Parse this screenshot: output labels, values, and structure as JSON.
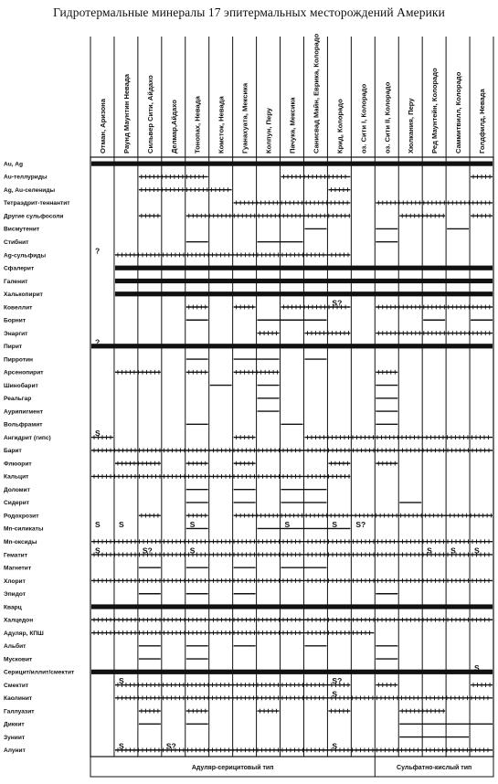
{
  "title": "Гидротермальные минералы 17 эпитермальных месторождений Америки",
  "chart_data": {
    "type": "table",
    "title": "Гидротермальные минералы 17 эпитермальных месторождений Америки",
    "deposits": [
      "Отман, Аризона",
      "Раунд Маунтин Невада",
      "Сильвер Сити, Айдахо",
      "Делмар,Айдахо",
      "Тонопах, Невада",
      "Комсток, Невада",
      "Гуанахуата, Мексика",
      "Колпун, Перу",
      "Пачука, Мексика",
      "Санисвад Майн, Еврика, Колорадо",
      "Крид, Колорадо",
      "оз. Сити I, Колорадо",
      "оз. Сити II, Колорадо",
      "Хюлкания, Перу",
      "Ред Маунтейн, Колорадо",
      "Саммитвилл, Колорадо",
      "Голдфилд, Невада"
    ],
    "minerals": [
      "Au, Ag",
      "Au-теллуриды",
      "Ag, Au-селениды",
      "Тетраэдрит-теннантит",
      "Другие сульфосоли",
      "Висмутенит",
      "Стибнит",
      "Ag-сульфиды",
      "Сфалерит",
      "Галенит",
      "Халькопирит",
      "Ковеллит",
      "Борнит",
      "Энаргит",
      "Пирит",
      "Пирротин",
      "Арсенопирит",
      "Шинобарит",
      "Реальгар",
      "Аурипигмент",
      "Вольфрамит",
      "Ангидрит (гипс)",
      "Барит",
      "Флюорит",
      "Кальцит",
      "Доломит",
      "Сидерит",
      "Родохрозит",
      "Мn-силикаты",
      "Мn-оксиды",
      "Гематит",
      "Магнетит",
      "Хлорит",
      "Эпидот",
      "Кварц",
      "Халцедон",
      "Адуляр, КПШ",
      "Альбит",
      "Мусковит",
      "Серицит/иллит/смектит",
      "Смектит",
      "Каолинит",
      "Галлуазит",
      "Диккит",
      "Зуниит",
      "Алунит"
    ],
    "legend_marks": [
      "?",
      "S",
      "S?"
    ],
    "footer_groups": [
      {
        "label": "Адуляр-серицитовый тип"
      },
      {
        "label": "Сульфатно-кислый тип"
      }
    ],
    "occurrences": [
      {
        "mineral": "Au, Ag",
        "style": "thick",
        "deposits": [
          1,
          2,
          3,
          4,
          5,
          6,
          7,
          8,
          9,
          10,
          11,
          12,
          13,
          14,
          15,
          16,
          17
        ]
      },
      {
        "mineral": "Au-теллуриды",
        "style": "tick",
        "deposits": [
          3,
          4,
          5,
          9,
          10,
          11,
          17
        ]
      },
      {
        "mineral": "Ag, Au-селениды",
        "style": "tick",
        "deposits": [
          3,
          4,
          5,
          6,
          11
        ]
      },
      {
        "mineral": "Тетраэдрит-теннантит",
        "style": "tick",
        "deposits": [
          7,
          8,
          9,
          10,
          11,
          13,
          14,
          15,
          16,
          17
        ]
      },
      {
        "mineral": "Другие сульфосоли",
        "style": "tick",
        "deposits": [
          3,
          5,
          6,
          7,
          8,
          9,
          10,
          11,
          14,
          15,
          17
        ]
      },
      {
        "mineral": "Висмутенит",
        "style": "thin",
        "deposits": [
          10,
          13,
          16
        ]
      },
      {
        "mineral": "Стибнит",
        "style": "thin",
        "deposits": [
          5,
          8,
          9,
          13
        ]
      },
      {
        "mineral": "Ag-сульфиды",
        "style": "tick",
        "deposits": [
          2,
          3,
          4,
          5,
          6,
          7,
          8,
          9,
          10,
          11
        ]
      },
      {
        "mineral": "Сфалерит",
        "style": "thick",
        "deposits": [
          2,
          3,
          4,
          5,
          6,
          7,
          8,
          9,
          10,
          11,
          12,
          13,
          14,
          15,
          16,
          17
        ]
      },
      {
        "mineral": "Галенит",
        "style": "thick",
        "deposits": [
          2,
          3,
          4,
          5,
          6,
          7,
          8,
          9,
          10,
          11,
          12,
          13,
          14,
          15,
          16,
          17
        ]
      },
      {
        "mineral": "Халькопирит",
        "style": "thick",
        "deposits": [
          2,
          3,
          4,
          5,
          6,
          7,
          8,
          9,
          10,
          11,
          12,
          13,
          14,
          15,
          16,
          17
        ]
      },
      {
        "mineral": "Ковеллит",
        "style": "tick",
        "deposits": [
          5,
          7,
          9,
          10,
          11,
          13,
          14,
          15,
          16,
          17
        ]
      },
      {
        "mineral": "Борнит",
        "style": "thin",
        "deposits": [
          5,
          8,
          9,
          10,
          15,
          17
        ]
      },
      {
        "mineral": "Энаргит",
        "style": "tick",
        "deposits": [
          8,
          10,
          11,
          13,
          14,
          15,
          16,
          17
        ]
      },
      {
        "mineral": "Пирит",
        "style": "thick",
        "deposits": [
          1,
          2,
          3,
          4,
          5,
          6,
          7,
          8,
          9,
          10,
          11,
          12,
          13,
          14,
          15,
          16,
          17
        ]
      },
      {
        "mineral": "Пирротин",
        "style": "thin",
        "deposits": [
          5,
          7,
          8,
          10
        ]
      },
      {
        "mineral": "Арсенопирит",
        "style": "tick",
        "deposits": [
          2,
          3,
          5,
          7,
          8,
          13
        ]
      },
      {
        "mineral": "Шинобарит",
        "style": "thin",
        "deposits": [
          6,
          8,
          13
        ]
      },
      {
        "mineral": "Реальгар",
        "style": "thin",
        "deposits": [
          8,
          13
        ]
      },
      {
        "mineral": "Аурипигмент",
        "style": "thin",
        "deposits": [
          8,
          13
        ]
      },
      {
        "mineral": "Вольфрамит",
        "style": "thin",
        "deposits": [
          5,
          9,
          13
        ]
      },
      {
        "mineral": "Ангидрит (гипс)",
        "style": "tick",
        "deposits": [
          1,
          7,
          10,
          11,
          12,
          13,
          14,
          15,
          16,
          17
        ]
      },
      {
        "mineral": "Барит",
        "style": "tick",
        "deposits": [
          1,
          2,
          3,
          4,
          5,
          6,
          7,
          8,
          9,
          10,
          11,
          12,
          13,
          14,
          15,
          16,
          17
        ]
      },
      {
        "mineral": "Флюорит",
        "style": "tick",
        "deposits": [
          2,
          3,
          5,
          7,
          11,
          13
        ]
      },
      {
        "mineral": "Кальцит",
        "style": "tick",
        "deposits": [
          1,
          2,
          3,
          4,
          5,
          6,
          7,
          8,
          9,
          10,
          11
        ]
      },
      {
        "mineral": "Доломит",
        "style": "thin",
        "deposits": [
          5,
          7,
          9,
          10
        ]
      },
      {
        "mineral": "Сидерит",
        "style": "thin",
        "deposits": [
          5,
          7,
          9,
          10,
          14
        ]
      },
      {
        "mineral": "Родохрозит",
        "style": "tick",
        "deposits": [
          3,
          5,
          7,
          8,
          9,
          10,
          11,
          12,
          13,
          14,
          15,
          16,
          17
        ]
      },
      {
        "mineral": "Мn-силикаты",
        "style": "thin",
        "deposits": [
          5,
          8,
          9,
          10,
          11
        ]
      },
      {
        "mineral": "Мn-оксиды",
        "style": "tick",
        "deposits": [
          1,
          2,
          3,
          4,
          5,
          6,
          7,
          8,
          9,
          10,
          11,
          12,
          13,
          14,
          15,
          16,
          17
        ]
      },
      {
        "mineral": "Гематит",
        "style": "tick",
        "deposits": [
          1,
          2,
          3,
          4,
          5,
          6,
          7,
          8,
          9,
          10,
          11,
          12,
          13,
          14,
          15,
          16,
          17
        ]
      },
      {
        "mineral": "Магнетит",
        "style": "thin",
        "deposits": [
          3,
          5,
          7,
          9,
          10
        ]
      },
      {
        "mineral": "Хлорит",
        "style": "tick",
        "deposits": [
          1,
          2,
          3,
          4,
          5,
          6,
          7,
          8,
          9,
          10,
          11,
          12,
          13,
          14,
          15,
          16,
          17
        ]
      },
      {
        "mineral": "Эпидот",
        "style": "thin",
        "deposits": [
          3,
          5,
          7,
          13
        ]
      },
      {
        "mineral": "Кварц",
        "style": "thick",
        "deposits": [
          1,
          2,
          3,
          4,
          5,
          6,
          7,
          8,
          9,
          10,
          11,
          12,
          13,
          14,
          15,
          16,
          17
        ]
      },
      {
        "mineral": "Халцедон",
        "style": "tick",
        "deposits": [
          1,
          2,
          3,
          4,
          5,
          6,
          7,
          8,
          9,
          10,
          11,
          12,
          13,
          14,
          15,
          16,
          17
        ]
      },
      {
        "mineral": "Адуляр, КПШ",
        "style": "tick",
        "deposits": [
          1,
          2,
          3,
          4,
          5,
          6,
          7,
          8,
          9,
          10,
          11,
          12
        ]
      },
      {
        "mineral": "Альбит",
        "style": "thin",
        "deposits": [
          3,
          5,
          7,
          10,
          13
        ]
      },
      {
        "mineral": "Мусковит",
        "style": "thin",
        "deposits": [
          3,
          5,
          13
        ]
      },
      {
        "mineral": "Серицит/иллит/смектит",
        "style": "thick",
        "deposits": [
          1,
          2,
          3,
          4,
          5,
          6,
          7,
          8,
          9,
          10,
          11,
          12,
          13,
          14,
          15,
          16,
          17
        ]
      },
      {
        "mineral": "Смектит",
        "style": "tick",
        "deposits": [
          2,
          3,
          4,
          5,
          6,
          7,
          8,
          9,
          10,
          11,
          13,
          17
        ]
      },
      {
        "mineral": "Каолинит",
        "style": "tick",
        "deposits": [
          2,
          3,
          4,
          5,
          6,
          7,
          8,
          9,
          10,
          11,
          12,
          13,
          14,
          15,
          16,
          17
        ]
      },
      {
        "mineral": "Галлуазит",
        "style": "tick",
        "deposits": [
          3,
          5,
          8,
          11,
          14,
          15
        ]
      },
      {
        "mineral": "Диккит",
        "style": "thin",
        "deposits": [
          3,
          5,
          14,
          15,
          16,
          17
        ]
      },
      {
        "mineral": "Зуниит",
        "style": "thin",
        "deposits": [
          14,
          15,
          16
        ]
      },
      {
        "mineral": "Алунит",
        "style": "tick",
        "deposits": [
          2,
          3,
          4,
          5,
          6,
          7,
          8,
          9,
          10,
          11,
          12,
          13,
          14,
          15,
          16,
          17
        ]
      }
    ],
    "marks": [
      {
        "mineral": "Ag-сульфиды",
        "deposit": 1,
        "text": "?"
      },
      {
        "mineral": "Ковеллит",
        "deposit": 11,
        "text": "S?"
      },
      {
        "mineral": "Пирит",
        "deposit": 1,
        "text": "?"
      },
      {
        "mineral": "Ангидрит (гипс)",
        "deposit": 1,
        "text": "S"
      },
      {
        "mineral": "Мn-силикаты",
        "deposit": 1,
        "text": "S"
      },
      {
        "mineral": "Мn-силикаты",
        "deposit": 2,
        "text": "S"
      },
      {
        "mineral": "Мn-силикаты",
        "deposit": 5,
        "text": "S"
      },
      {
        "mineral": "Мn-силикаты",
        "deposit": 9,
        "text": "S"
      },
      {
        "mineral": "Мn-силикаты",
        "deposit": 11,
        "text": "S"
      },
      {
        "mineral": "Мn-силикаты",
        "deposit": 12,
        "text": "S?"
      },
      {
        "mineral": "Гематит",
        "deposit": 1,
        "text": "S"
      },
      {
        "mineral": "Гематит",
        "deposit": 3,
        "text": "S?"
      },
      {
        "mineral": "Гематит",
        "deposit": 5,
        "text": "S"
      },
      {
        "mineral": "Гематит",
        "deposit": 15,
        "text": "S"
      },
      {
        "mineral": "Гематит",
        "deposit": 16,
        "text": "S"
      },
      {
        "mineral": "Гематит",
        "deposit": 17,
        "text": "S"
      },
      {
        "mineral": "Серицит/иллит/смектит",
        "deposit": 17,
        "text": "S"
      },
      {
        "mineral": "Смектит",
        "deposit": 2,
        "text": "S"
      },
      {
        "mineral": "Смектит",
        "deposit": 11,
        "text": "S?"
      },
      {
        "mineral": "Каолинит",
        "deposit": 11,
        "text": "S"
      },
      {
        "mineral": "Алунит",
        "deposit": 2,
        "text": "S"
      },
      {
        "mineral": "Алунит",
        "deposit": 4,
        "text": "S?"
      },
      {
        "mineral": "Алунит",
        "deposit": 11,
        "text": "S"
      }
    ]
  }
}
